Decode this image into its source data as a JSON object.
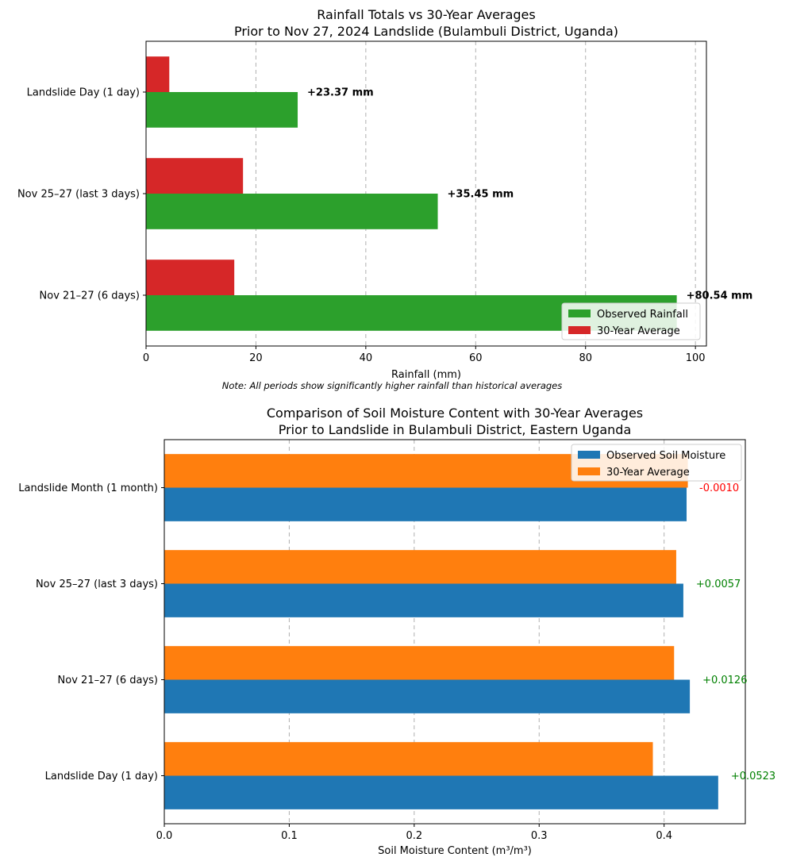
{
  "chart_data": [
    {
      "type": "bar",
      "orientation": "horizontal",
      "title": "Rainfall Totals vs 30-Year Averages",
      "subtitle": "Prior to Nov 27, 2024 Landslide (Bulambuli District, Uganda)",
      "categories": [
        "Nov 21–27 (6 days)",
        "Nov 25–27 (last 3 days)",
        "Landslide Day (1 day)"
      ],
      "series": [
        {
          "name": "Observed Rainfall",
          "color": "#2ca02c",
          "values": [
            96.6,
            53.1,
            27.6
          ]
        },
        {
          "name": "30-Year Average",
          "color": "#d62728",
          "values": [
            16.06,
            17.65,
            4.23
          ]
        }
      ],
      "differences": [
        "+80.54 mm",
        "+35.45 mm",
        "+23.37 mm"
      ],
      "xlabel": "Rainfall (mm)",
      "xticks": [
        0,
        20,
        40,
        60,
        80,
        100
      ],
      "xticklabels": [
        "0",
        "20",
        "40",
        "60",
        "80",
        "100"
      ],
      "xlim": [
        0,
        102
      ],
      "grid": "x",
      "legend_position": "lower right",
      "note": "Note: All periods show significantly higher rainfall than historical averages"
    },
    {
      "type": "bar",
      "orientation": "horizontal",
      "title": "Comparison of Soil Moisture Content with 30-Year Averages",
      "subtitle": "Prior to Landslide in Bulambuli District, Eastern Uganda",
      "categories": [
        "Landslide Day (1 day)",
        "Nov 21–27 (6 days)",
        "Nov 25–27 (last 3 days)",
        "Landslide Month (1 month)"
      ],
      "series": [
        {
          "name": "Observed Soil Moisture",
          "color": "#1f77b4",
          "values": [
            0.4433,
            0.4206,
            0.4154,
            0.418
          ]
        },
        {
          "name": "30-Year Average",
          "color": "#ff7f0e",
          "values": [
            0.391,
            0.408,
            0.4097,
            0.419
          ]
        }
      ],
      "differences": [
        "+0.0523",
        "+0.0126",
        "+0.0057",
        "-0.0010"
      ],
      "difference_colors": [
        "#008000",
        "#008000",
        "#008000",
        "#ff0000"
      ],
      "xlabel": "Soil Moisture Content (m³/m³)",
      "xticks": [
        0,
        0.1,
        0.2,
        0.3,
        0.4
      ],
      "xticklabels": [
        "0.0",
        "0.1",
        "0.2",
        "0.3",
        "0.4"
      ],
      "xlim": [
        0,
        0.465
      ],
      "grid": "x",
      "legend_position": "upper right"
    }
  ]
}
